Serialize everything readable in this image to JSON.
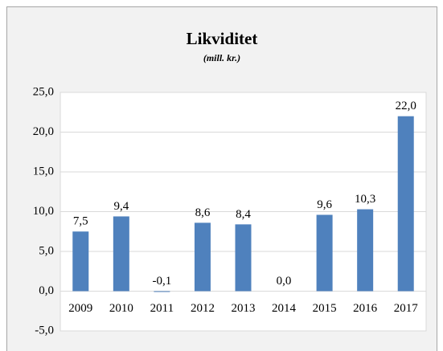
{
  "chart_data": {
    "type": "bar",
    "title": "Likviditet",
    "subtitle": "(mill. kr.)",
    "categories": [
      "2009",
      "2010",
      "2011",
      "2012",
      "2013",
      "2014",
      "2015",
      "2016",
      "2017"
    ],
    "values": [
      7.5,
      9.4,
      -0.1,
      8.6,
      8.4,
      0.0,
      9.6,
      10.3,
      22.0
    ],
    "value_labels": [
      "7,5",
      "9,4",
      "-0,1",
      "8,6",
      "8,4",
      "0,0",
      "9,6",
      "10,3",
      "22,0"
    ],
    "color": "#4f81bd",
    "ylim": [
      -5,
      25
    ],
    "yticks": [
      {
        "value": -5,
        "label": "-5,0"
      },
      {
        "value": 0,
        "label": "0,0"
      },
      {
        "value": 5,
        "label": "5,0"
      },
      {
        "value": 10,
        "label": "10,0"
      },
      {
        "value": 15,
        "label": "15,0"
      },
      {
        "value": 20,
        "label": "20,0"
      },
      {
        "value": 25,
        "label": "25,0"
      }
    ],
    "grid": true
  }
}
